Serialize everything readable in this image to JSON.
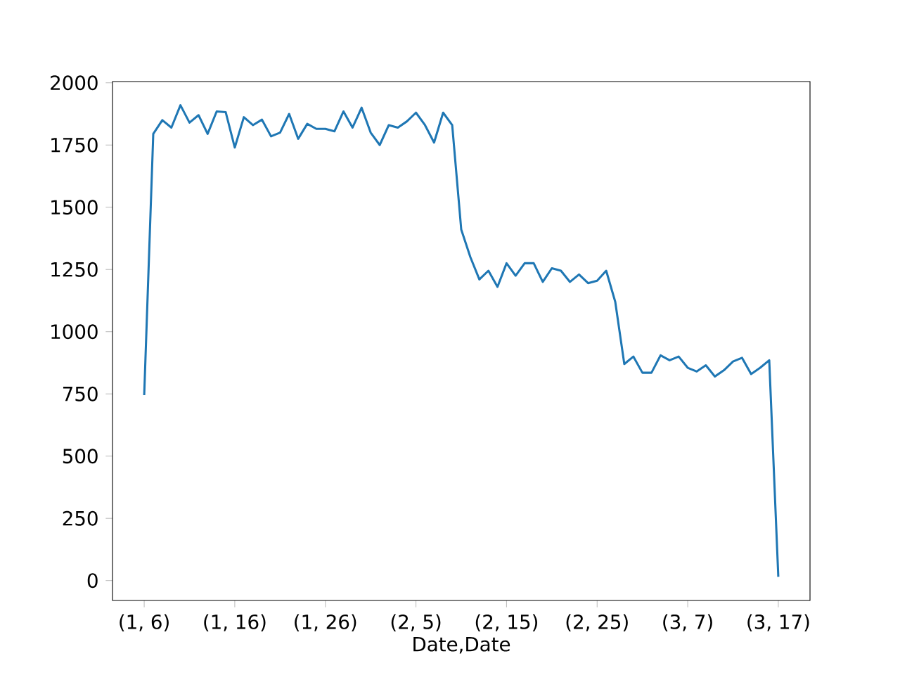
{
  "chart_data": {
    "type": "line",
    "xlabel": "Date,Date",
    "categories": [
      "(1, 6)",
      null,
      null,
      null,
      null,
      null,
      null,
      null,
      null,
      null,
      "(1, 16)",
      null,
      null,
      null,
      null,
      null,
      null,
      null,
      null,
      null,
      "(1, 26)",
      null,
      null,
      null,
      null,
      null,
      null,
      null,
      null,
      null,
      "(2, 5)",
      null,
      null,
      null,
      null,
      null,
      null,
      null,
      null,
      null,
      "(2, 15)",
      null,
      null,
      null,
      null,
      null,
      null,
      null,
      null,
      null,
      "(2, 25)",
      null,
      null,
      null,
      null,
      null,
      null,
      null,
      null,
      null,
      "(3, 7)",
      null,
      null,
      null,
      null,
      null,
      null,
      null,
      null,
      null,
      "(3, 17)"
    ],
    "series": [
      {
        "color": "#1f77b4",
        "values": [
          745,
          1795,
          1850,
          1820,
          1910,
          1840,
          1870,
          1795,
          1885,
          1882,
          1740,
          1862,
          1830,
          1852,
          1785,
          1800,
          1875,
          1775,
          1835,
          1815,
          1815,
          1805,
          1885,
          1820,
          1900,
          1800,
          1750,
          1830,
          1820,
          1845,
          1880,
          1830,
          1760,
          1880,
          1830,
          1410,
          1300,
          1210,
          1245,
          1180,
          1275,
          1225,
          1275,
          1275,
          1200,
          1255,
          1245,
          1200,
          1230,
          1195,
          1205,
          1245,
          1120,
          870,
          900,
          835,
          835,
          905,
          885,
          900,
          855,
          840,
          865,
          820,
          845,
          880,
          895,
          830,
          855,
          885,
          15
        ]
      }
    ],
    "ylim": [
      -80,
      2005
    ],
    "yticks": [
      0,
      250,
      500,
      750,
      1000,
      1250,
      1500,
      1750,
      2000
    ],
    "marker": "none",
    "line_style": "solid"
  }
}
